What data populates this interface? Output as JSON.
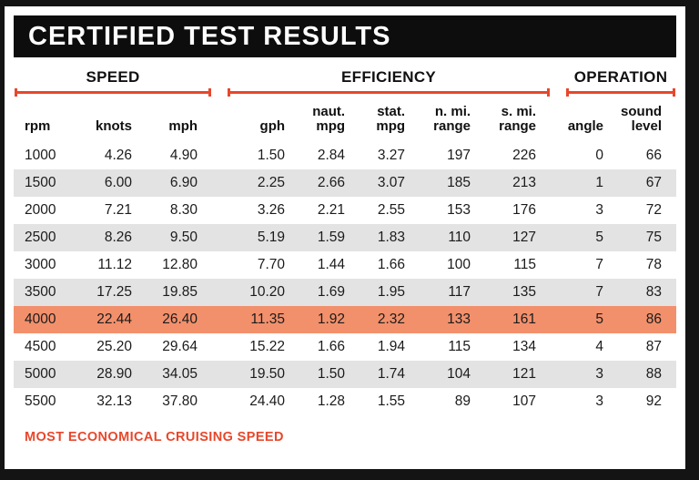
{
  "title": "CERTIFIED TEST RESULTS",
  "footer_note": "MOST ECONOMICAL CRUISING SPEED",
  "colors": {
    "accent_red": "#e8472b",
    "highlight_row": "#f2906c",
    "stripe_gray": "#e3e3e3",
    "banner_black": "#0d0d0d"
  },
  "chart_data": {
    "type": "table",
    "title": "CERTIFIED TEST RESULTS",
    "groups": [
      {
        "label": "SPEED",
        "columns": [
          "rpm",
          "knots",
          "mph"
        ]
      },
      {
        "label": "EFFICIENCY",
        "columns": [
          "gph",
          "naut. mpg",
          "stat. mpg",
          "n. mi. range",
          "s. mi. range"
        ]
      },
      {
        "label": "OPERATION",
        "columns": [
          "angle",
          "sound level"
        ]
      }
    ],
    "column_keys": [
      "rpm",
      "knots",
      "mph",
      "gph",
      "naut_mpg",
      "stat_mpg",
      "n_mi_range",
      "s_mi_range",
      "angle",
      "sound_level"
    ],
    "column_labels": [
      [
        "rpm"
      ],
      [
        "knots"
      ],
      [
        "mph"
      ],
      [
        "gph"
      ],
      [
        "naut.",
        "mpg"
      ],
      [
        "stat.",
        "mpg"
      ],
      [
        "n. mi.",
        "range"
      ],
      [
        "s. mi.",
        "range"
      ],
      [
        "angle"
      ],
      [
        "sound",
        "level"
      ]
    ],
    "decimals": [
      0,
      2,
      2,
      2,
      2,
      2,
      0,
      0,
      0,
      0
    ],
    "rows": [
      [
        1000,
        4.26,
        4.9,
        1.5,
        2.84,
        3.27,
        197,
        226,
        0,
        66
      ],
      [
        1500,
        6.0,
        6.9,
        2.25,
        2.66,
        3.07,
        185,
        213,
        1,
        67
      ],
      [
        2000,
        7.21,
        8.3,
        3.26,
        2.21,
        2.55,
        153,
        176,
        3,
        72
      ],
      [
        2500,
        8.26,
        9.5,
        5.19,
        1.59,
        1.83,
        110,
        127,
        5,
        75
      ],
      [
        3000,
        11.12,
        12.8,
        7.7,
        1.44,
        1.66,
        100,
        115,
        7,
        78
      ],
      [
        3500,
        17.25,
        19.85,
        10.2,
        1.69,
        1.95,
        117,
        135,
        7,
        83
      ],
      [
        4000,
        22.44,
        26.4,
        11.35,
        1.92,
        2.32,
        133,
        161,
        5,
        86
      ],
      [
        4500,
        25.2,
        29.64,
        15.22,
        1.66,
        1.94,
        115,
        134,
        4,
        87
      ],
      [
        5000,
        28.9,
        34.05,
        19.5,
        1.5,
        1.74,
        104,
        121,
        3,
        88
      ],
      [
        5500,
        32.13,
        37.8,
        24.4,
        1.28,
        1.55,
        89,
        107,
        3,
        92
      ]
    ],
    "highlighted_row_index": 6,
    "highlight_note": "MOST ECONOMICAL CRUISING SPEED"
  }
}
